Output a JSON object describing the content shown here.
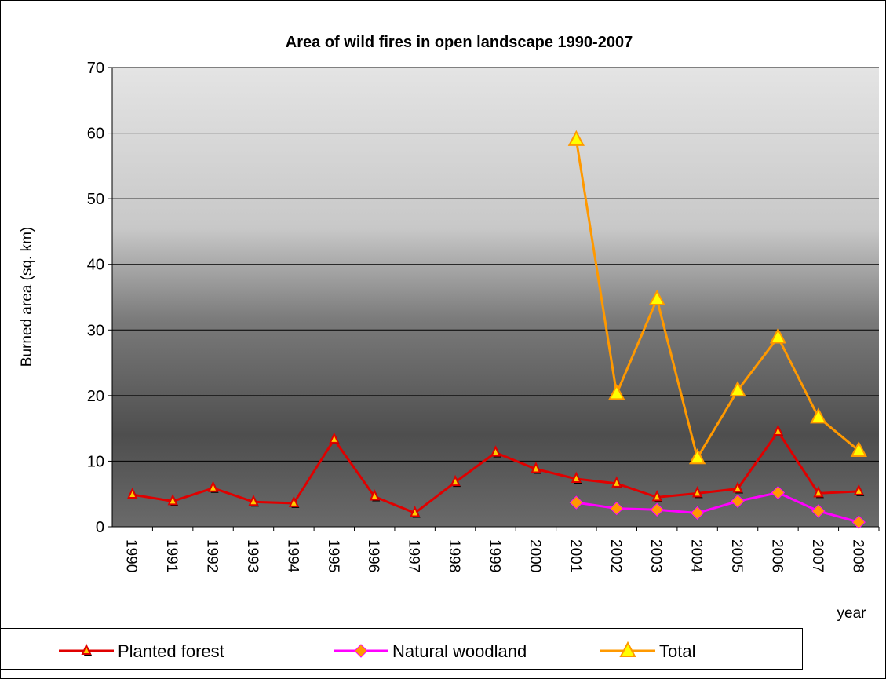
{
  "chart_data": {
    "type": "line",
    "title": "Area of wild fires in open landscape 1990-2007",
    "y_label": "Burned area (sq. km)",
    "x_label": "year",
    "categories": [
      "1990",
      "1991",
      "1992",
      "1993",
      "1994",
      "1995",
      "1996",
      "1997",
      "1998",
      "1999",
      "2000",
      "2001",
      "2002",
      "2003",
      "2004",
      "2005",
      "2006",
      "2007",
      "2008"
    ],
    "series": [
      {
        "name": "Planted forest",
        "color": "#e00000",
        "marker": "triangle",
        "marker_color": "#ffcc00",
        "values": [
          4.9,
          3.9,
          5.9,
          3.8,
          3.6,
          13.3,
          4.6,
          2.1,
          6.8,
          11.3,
          8.8,
          7.3,
          6.6,
          4.5,
          5.1,
          5.8,
          14.5,
          5.1,
          5.4
        ]
      },
      {
        "name": "Natural woodland",
        "color": "#ff00ff",
        "marker": "diamond",
        "marker_color": "#ff9900",
        "values": [
          null,
          null,
          null,
          null,
          null,
          null,
          null,
          null,
          null,
          null,
          null,
          3.7,
          2.8,
          2.6,
          2.1,
          3.9,
          5.2,
          2.4,
          0.7
        ]
      },
      {
        "name": "Total",
        "color": "#ff9900",
        "marker": "big-triangle",
        "marker_color": "#ffff00",
        "values": [
          null,
          null,
          null,
          null,
          null,
          null,
          null,
          null,
          null,
          null,
          null,
          59,
          20.3,
          34.7,
          10.5,
          20.8,
          28.9,
          16.7,
          11.6
        ]
      }
    ],
    "ylim": [
      0,
      70
    ],
    "yticks": [
      0,
      10,
      20,
      30,
      40,
      50,
      60,
      70
    ],
    "grid": true
  }
}
